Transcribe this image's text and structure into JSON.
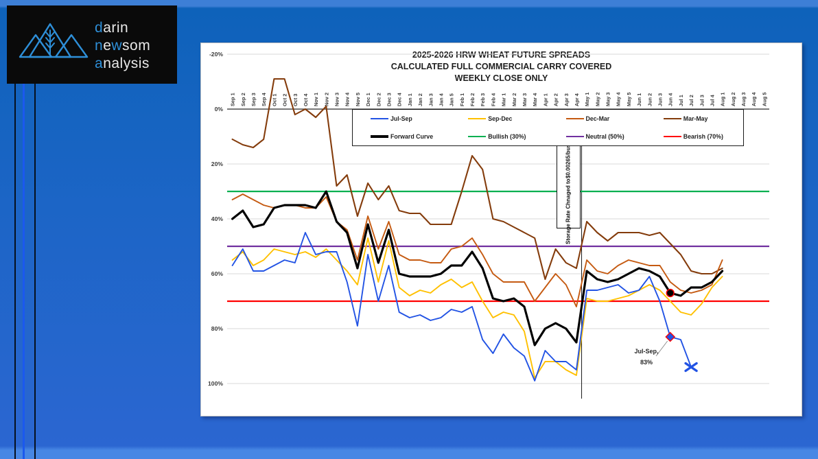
{
  "colors": {
    "background_top_strip": "#3d7fd6",
    "background_main": "#1c65c6",
    "background_bottom_strip": "#4787e4",
    "logo_background": "#0a0a0a",
    "logo_blue": "#2e8fd8",
    "panel_background": "#ffffff",
    "gridline": "#d9d9d9",
    "axis_line": "#4d4d4d",
    "tick_text": "#3a3a3a"
  },
  "logo": {
    "lines": [
      [
        {
          "t": "d",
          "blue": true
        },
        {
          "t": "arin",
          "blue": false
        }
      ],
      [
        {
          "t": "n",
          "blue": true
        },
        {
          "t": "e",
          "blue": false
        },
        {
          "t": "w",
          "blue": true
        },
        {
          "t": "som",
          "blue": false
        }
      ],
      [
        {
          "t": "a",
          "blue": true
        },
        {
          "t": "nalysis",
          "blue": false
        }
      ]
    ]
  },
  "chart_data": {
    "type": "line",
    "title_lines": [
      "2025-2026 HRW WHEAT FUTURE SPREADS",
      "CALCULATED FULL COMMERCIAL CARRY COVERED",
      "WEEKLY CLOSE ONLY"
    ],
    "x_labels": [
      "Sep 1",
      "Sep 2",
      "Sep 3",
      "Sep 4",
      "Oct 1",
      "Oct 2",
      "Oct 3",
      "Oct 4",
      "Nov 1",
      "Nov 2",
      "Nov 3",
      "Nov 4",
      "Nov 5",
      "Dec 1",
      "Dec 2",
      "Dec 3",
      "Dec 4",
      "Jan 1",
      "Jan 2",
      "Jan 3",
      "Jan 4",
      "Jan 5",
      "Feb 1",
      "Feb 2",
      "Feb 3",
      "Feb 4",
      "Mar 1",
      "Mar 2",
      "Mar 3",
      "Mar 4",
      "Apr 1",
      "Apr 2",
      "Apr 3",
      "Apr 4",
      "May 1",
      "May 2",
      "May 3",
      "May 4",
      "May 5",
      "Jun 1",
      "Jun 2",
      "Jun 3",
      "Jun 4",
      "Jul 1",
      "Jul 2",
      "Jul 3",
      "Jul 4",
      "Aug 1",
      "Aug 2",
      "Aug 3",
      "Aug 4",
      "Aug 5"
    ],
    "y_axis": {
      "min": -20,
      "max": 100,
      "step": 20,
      "inverted": true,
      "tick_labels": [
        "-20%",
        "0%",
        "20%",
        "40%",
        "60%",
        "80%",
        "100%"
      ],
      "grid": true
    },
    "series": [
      {
        "name": "Mar-May",
        "color": "#843C0C",
        "width": 2.1,
        "values": [
          11,
          13,
          14,
          11,
          -11,
          -11,
          2,
          0,
          3,
          -1,
          28,
          24,
          39,
          27,
          33,
          28,
          37,
          38,
          38,
          42,
          42,
          42,
          30,
          17,
          22,
          40,
          41,
          43,
          45,
          47,
          62,
          51,
          56,
          58,
          41,
          45,
          48,
          45,
          45,
          45,
          46,
          45,
          49,
          53,
          59,
          60,
          60,
          58
        ]
      },
      {
        "name": "Dec-Mar",
        "color": "#C55A11",
        "width": 1.9,
        "values": [
          33,
          31,
          33,
          35,
          36,
          35,
          35,
          36,
          36,
          32,
          41,
          44,
          55,
          39,
          51,
          41,
          53,
          55,
          55,
          56,
          56,
          51,
          50,
          47,
          53,
          60,
          63,
          63,
          63,
          70,
          65,
          60,
          64,
          72,
          55,
          59,
          60,
          57,
          55,
          56,
          57,
          57,
          63,
          66,
          67,
          66,
          64,
          55
        ]
      },
      {
        "name": "Sep-Dec",
        "color": "#FFC000",
        "width": 1.9,
        "values": [
          55,
          52,
          57,
          55,
          51,
          52,
          53,
          52,
          54,
          51,
          55,
          59,
          64,
          47,
          63,
          48,
          65,
          68,
          66,
          67,
          64,
          62,
          65,
          63,
          70,
          76,
          74,
          75,
          81,
          98,
          92,
          92,
          95,
          97,
          69,
          70,
          70,
          69,
          68,
          66,
          64,
          66,
          70,
          74,
          75,
          71,
          65,
          61
        ]
      },
      {
        "name": "Jul-Sep",
        "color": "#2253E4",
        "width": 1.9,
        "values": [
          57,
          51,
          59,
          59,
          57,
          55,
          56,
          45,
          53,
          52,
          52,
          63,
          79,
          53,
          70,
          57,
          74,
          76,
          75,
          77,
          76,
          73,
          74,
          72,
          84,
          89,
          82,
          87,
          90,
          99,
          88,
          92,
          92,
          95,
          66,
          66,
          65,
          64,
          67,
          66,
          61,
          70,
          83,
          84,
          94
        ]
      },
      {
        "name": "Forward Curve",
        "color": "#000000",
        "width": 3.2,
        "values": [
          40,
          37,
          43,
          42,
          36,
          35,
          35,
          35,
          36,
          30,
          41,
          45,
          58,
          42,
          56,
          44,
          60,
          61,
          61,
          61,
          60,
          57,
          57,
          52,
          58,
          69,
          70,
          69,
          72,
          86,
          80,
          78,
          80,
          85,
          59,
          62,
          63,
          62,
          60,
          58,
          59,
          61,
          67,
          68,
          65,
          65,
          63,
          59
        ]
      }
    ],
    "reference_lines": [
      {
        "name": "Bullish (30%)",
        "value": 30,
        "color": "#00B050"
      },
      {
        "name": "Neutral (50%)",
        "value": 50,
        "color": "#7030A0"
      },
      {
        "name": "Bearish (70%)",
        "value": 70,
        "color": "#FF0000"
      }
    ],
    "legend": {
      "position": "inside-top",
      "entries": [
        {
          "label": "Jul-Sep",
          "color": "#2253E4",
          "thick": false
        },
        {
          "label": "Sep-Dec",
          "color": "#FFC000",
          "thick": false
        },
        {
          "label": "Dec-Mar",
          "color": "#C55A11",
          "thick": false
        },
        {
          "label": "Mar-May",
          "color": "#843C0C",
          "thick": false
        },
        {
          "label": "Forward Curve",
          "color": "#000000",
          "thick": true
        },
        {
          "label": "Bullish (30%)",
          "color": "#00B050",
          "thick": false
        },
        {
          "label": "Neutral (50%)",
          "color": "#7030A0",
          "thick": false
        },
        {
          "label": "Bearish (70%)",
          "color": "#FF0000",
          "thick": false
        }
      ]
    },
    "event_line": {
      "between_weeks": [
        "Apr 4",
        "May 1"
      ],
      "label_lines": [
        "Storage Rate Chnaged to",
        "$0.00265/bushel/day"
      ]
    },
    "markers": [
      {
        "type": "circle",
        "series": "Forward Curve",
        "week": "Jun 4",
        "value": 67,
        "fill": "#000000",
        "stroke": "#FF0000"
      },
      {
        "type": "diamond",
        "series": "Jul-Sep",
        "week": "Jun 4",
        "value": 83,
        "fill": "#2253E4",
        "stroke": "#FF0000"
      },
      {
        "type": "x",
        "series": "Jul-Sep",
        "week": "Jul 2",
        "value": 94,
        "color": "#2253E4"
      }
    ],
    "annotation": {
      "label_lines": [
        "Jul-Sep,",
        "83%"
      ],
      "attached_to": {
        "series": "Jul-Sep",
        "week": "Jun 4",
        "value": 83
      }
    }
  }
}
